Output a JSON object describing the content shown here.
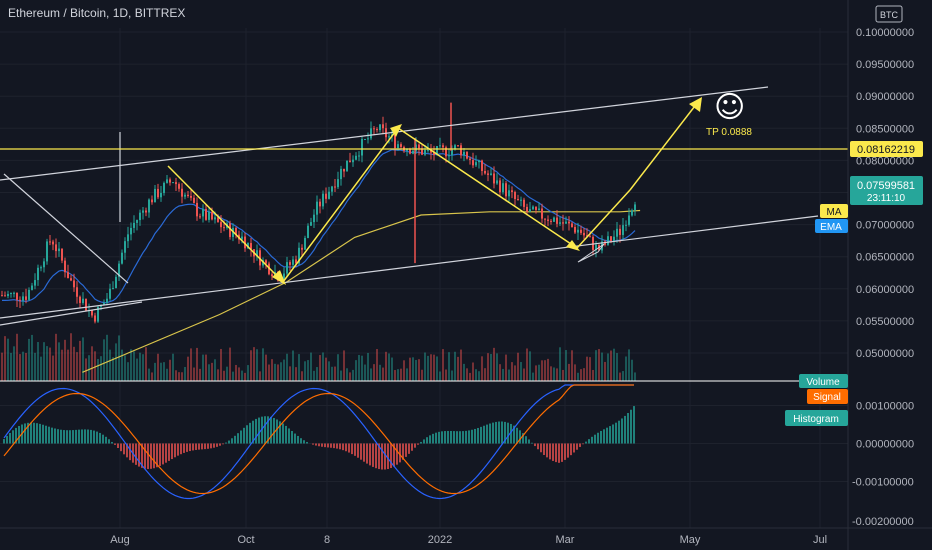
{
  "header": {
    "title": "Ethereum / Bitcoin, 1D, BITTREX"
  },
  "currency_button": "BTC",
  "colors": {
    "background": "#131722",
    "grid": "#1e222d",
    "up": "#26a69a",
    "down": "#ef5350",
    "yellow": "#fbe94c",
    "ma": "#d8c44b",
    "ema": "#2a6ad6",
    "macd": "#2962ff",
    "signal": "#ff6d00",
    "text": "#b2b5be",
    "trendline": "#d1d4dc"
  },
  "price_axis": {
    "ticks": [
      "0.10000000",
      "0.09500000",
      "0.09000000",
      "0.08500000",
      "0.08000000",
      "0.07500000",
      "0.07000000",
      "0.06500000",
      "0.06000000",
      "0.05500000",
      "0.05000000"
    ],
    "current_price": "0.07599581",
    "countdown": "23:11:10",
    "level_label": "0.08162219",
    "ma_tag": "MA",
    "ema_tag": "EMA"
  },
  "indicator_axis": {
    "ticks": [
      "0.00100000",
      "0.00000000",
      "-0.00100000",
      "-0.00200000"
    ],
    "volume_tag": "Volume",
    "signal_tag": "Signal",
    "histogram_tag": "Histogram"
  },
  "time_axis": {
    "labels": [
      "Aug",
      "Oct",
      "8",
      "2022",
      "Mar",
      "May",
      "Jul"
    ]
  },
  "annotations": {
    "target_text": "TP 0.0888",
    "smiley": "☺"
  },
  "chart_data": {
    "type": "candlestick",
    "title": "Ethereum / Bitcoin, 1D, BITTREX",
    "ylim": [
      0.0475,
      0.1025
    ],
    "resistance_level": 0.08162219,
    "target": 0.0888,
    "price_path": [
      [
        "2021-06-20",
        0.059
      ],
      [
        "2021-07-01",
        0.068
      ],
      [
        "2021-07-10",
        0.061
      ],
      [
        "2021-07-20",
        0.0555
      ],
      [
        "2021-07-27",
        0.059
      ],
      [
        "2021-08-05",
        0.069
      ],
      [
        "2021-08-15",
        0.074
      ],
      [
        "2021-08-25",
        0.077
      ],
      [
        "2021-09-05",
        0.072
      ],
      [
        "2021-09-15",
        0.07
      ],
      [
        "2021-09-25",
        0.068
      ],
      [
        "2021-10-05",
        0.064
      ],
      [
        "2021-10-12",
        0.062
      ],
      [
        "2021-10-20",
        0.065
      ],
      [
        "2021-10-28",
        0.072
      ],
      [
        "2021-11-10",
        0.079
      ],
      [
        "2021-11-25",
        0.085
      ],
      [
        "2021-12-05",
        0.0825
      ],
      [
        "2021-12-20",
        0.081
      ],
      [
        "2022-01-01",
        0.082
      ],
      [
        "2022-01-10",
        0.079
      ],
      [
        "2022-01-20",
        0.076
      ],
      [
        "2022-02-01",
        0.072
      ],
      [
        "2022-02-12",
        0.071
      ],
      [
        "2022-02-25",
        0.069
      ],
      [
        "2022-03-05",
        0.066
      ],
      [
        "2022-03-15",
        0.069
      ],
      [
        "2022-03-24",
        0.076
      ]
    ],
    "ma_path": [
      [
        "2021-07-15",
        0.047
      ],
      [
        "2021-09-15",
        0.056
      ],
      [
        "2021-10-15",
        0.061
      ],
      [
        "2021-11-15",
        0.068
      ],
      [
        "2021-12-15",
        0.0715
      ],
      [
        "2022-01-15",
        0.072
      ],
      [
        "2022-02-15",
        0.072
      ],
      [
        "2022-03-15",
        0.072
      ],
      [
        "2022-03-24",
        0.0722
      ]
    ]
  }
}
